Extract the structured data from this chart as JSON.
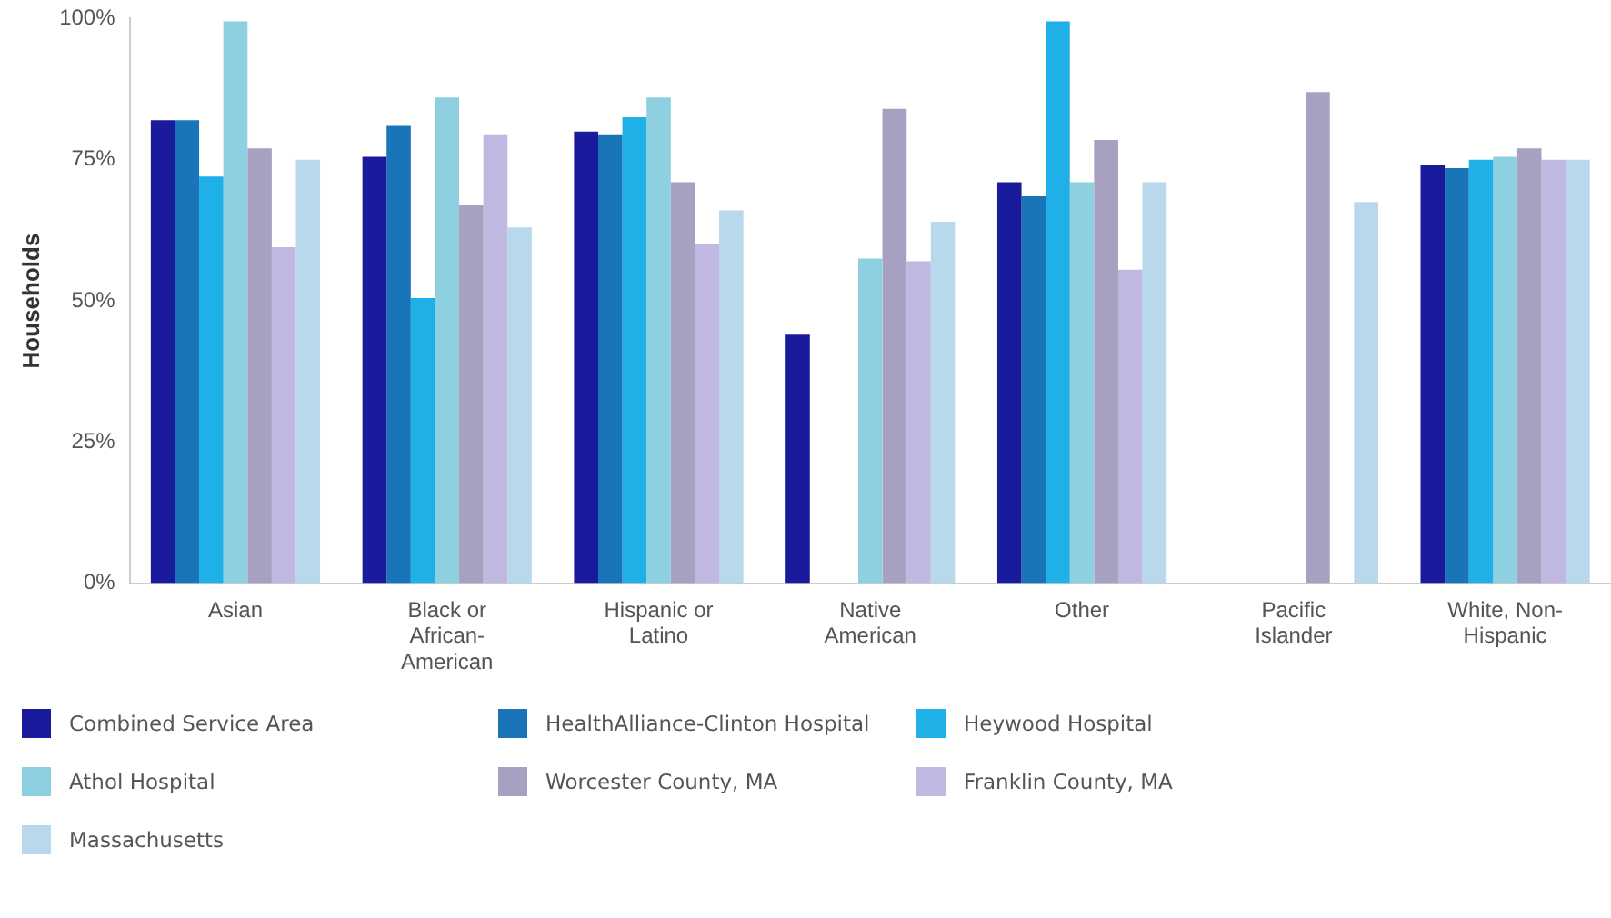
{
  "chart_data": {
    "type": "bar",
    "ylabel": "Households",
    "categories": [
      "Asian",
      "Black or African-American",
      "Hispanic or Latino",
      "Native American",
      "Other",
      "Pacific Islander",
      "White, Non-Hispanic"
    ],
    "series": [
      {
        "name": "Combined Service Area",
        "color": "#1a1a9c",
        "values": [
          82,
          75.5,
          80,
          44,
          71,
          null,
          74
        ]
      },
      {
        "name": "HealthAlliance-Clinton Hospital",
        "color": "#1a75b8",
        "values": [
          82,
          81,
          79.5,
          null,
          68.5,
          null,
          73.5
        ]
      },
      {
        "name": "Heywood Hospital",
        "color": "#1fb0e8",
        "values": [
          72,
          50.5,
          82.5,
          null,
          99.5,
          null,
          75
        ]
      },
      {
        "name": "Athol Hospital",
        "color": "#8fd0e0",
        "values": [
          99.5,
          86,
          86,
          57.5,
          71,
          null,
          75.5
        ]
      },
      {
        "name": "Worcester County, MA",
        "color": "#a8a0c0",
        "values": [
          77,
          67,
          71,
          84,
          78.5,
          87,
          77
        ]
      },
      {
        "name": "Franklin County, MA",
        "color": "#c0b8e0",
        "values": [
          59.5,
          79.5,
          60,
          57,
          55.5,
          null,
          75
        ]
      },
      {
        "name": "Massachusetts",
        "color": "#b8d8ec",
        "values": [
          75,
          63,
          66,
          64,
          71,
          67.5,
          75
        ]
      }
    ],
    "ylim": [
      0,
      100
    ],
    "yticks": [
      {
        "value": 0,
        "label": "0%"
      },
      {
        "value": 25,
        "label": "25%"
      },
      {
        "value": 50,
        "label": "50%"
      },
      {
        "value": 75,
        "label": "75%"
      },
      {
        "value": 100,
        "label": "100%"
      }
    ],
    "grid": false,
    "legend": "bottom"
  }
}
